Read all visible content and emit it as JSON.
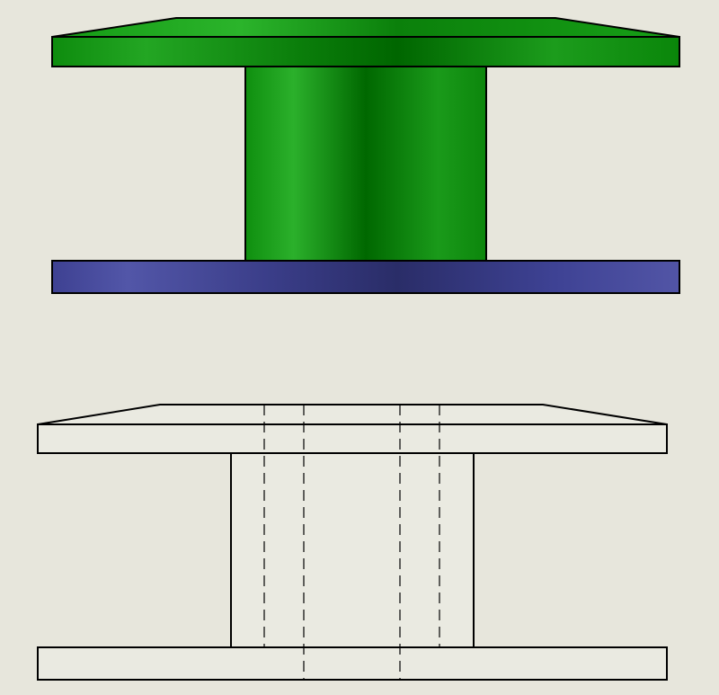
{
  "colors": {
    "background": "#e7e6dc",
    "green_dark": "#006b00",
    "green_mid": "#0a8f0a",
    "green_light": "#25a825",
    "blue_dark": "#2a2e66",
    "blue_mid": "#3a3d86",
    "blue_light": "#5154a6",
    "outline": "#000000",
    "drawing_fill": "#eaeae1"
  },
  "views": [
    {
      "name": "shaded-3d-view",
      "style": "shaded"
    },
    {
      "name": "hidden-line-view",
      "style": "wireframe-with-hidden-lines"
    }
  ]
}
